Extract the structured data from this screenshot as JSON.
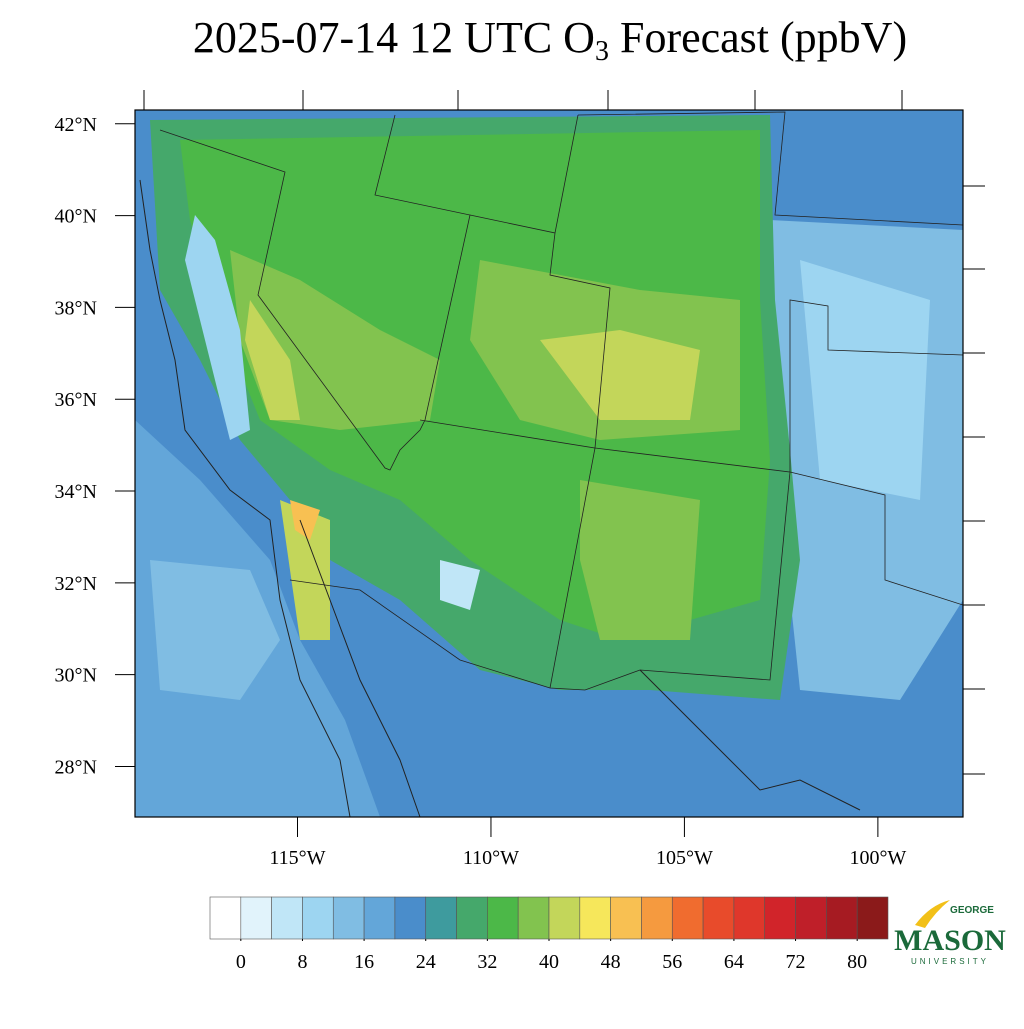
{
  "chart_data": {
    "type": "map",
    "title_prefix": "2025-07-14 12 UTC O",
    "title_subscript": "3",
    "title_suffix": " Forecast (ppbV)",
    "ylim": [
      26.9,
      42.3
    ],
    "yticks": [
      {
        "value": 28,
        "label": "28°N"
      },
      {
        "value": 30,
        "label": "30°N"
      },
      {
        "value": 32,
        "label": "32°N"
      },
      {
        "value": 34,
        "label": "34°N"
      },
      {
        "value": 36,
        "label": "36°N"
      },
      {
        "value": 38,
        "label": "38°N"
      },
      {
        "value": 40,
        "label": "40°N"
      },
      {
        "value": 42,
        "label": "42°N"
      }
    ],
    "xlim": [
      -119.2,
      -97.8
    ],
    "xticks": [
      {
        "value": -115,
        "label": "115°W"
      },
      {
        "value": -110,
        "label": "110°W"
      },
      {
        "value": -105,
        "label": "105°W"
      },
      {
        "value": -100,
        "label": "100°W"
      }
    ],
    "colorbar": {
      "lim": [
        -4,
        84
      ],
      "ticks": [
        0,
        8,
        16,
        24,
        32,
        40,
        48,
        56,
        64,
        72,
        80
      ],
      "colors": [
        "#ffffff",
        "#e1f3fb",
        "#c0e6f7",
        "#9dd5f1",
        "#80bde3",
        "#63a6d9",
        "#4a8dcb",
        "#3e9b9e",
        "#45a86b",
        "#4cb848",
        "#82c34f",
        "#c3d65a",
        "#f6e75b",
        "#f8c052",
        "#f59a3f",
        "#f06c2f",
        "#e84b2b",
        "#df372b",
        "#d1242a",
        "#bf1f29",
        "#a61b22",
        "#8b1a1a"
      ]
    },
    "logo": {
      "top": "GEORGE",
      "main": "MASON",
      "bottom": "UNIVERSITY"
    }
  }
}
